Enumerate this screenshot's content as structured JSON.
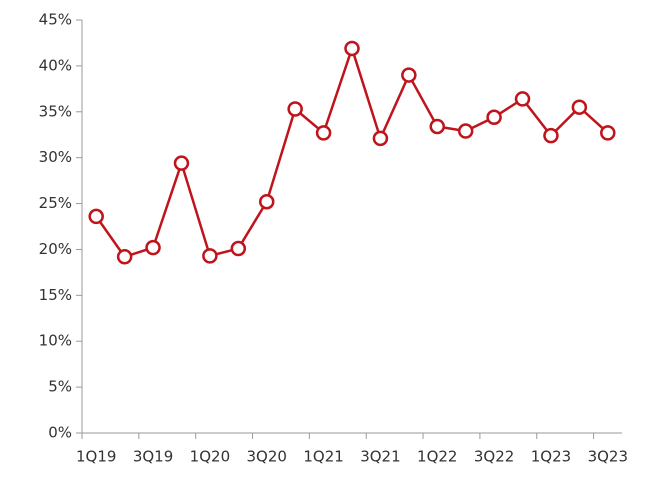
{
  "chart_data": {
    "type": "line",
    "categories": [
      "1Q19",
      null,
      "3Q19",
      null,
      "1Q20",
      null,
      "3Q20",
      null,
      "1Q21",
      null,
      "3Q21",
      null,
      "1Q22",
      null,
      "3Q22",
      null,
      "1Q23",
      null,
      "3Q23"
    ],
    "series": [
      {
        "color": "#c0141c",
        "values": [
          23.6,
          19.2,
          20.2,
          29.4,
          19.3,
          20.1,
          25.2,
          35.3,
          32.7,
          41.9,
          32.1,
          39.0,
          33.4,
          32.9,
          34.4,
          36.4,
          32.4,
          35.5,
          32.7
        ]
      }
    ],
    "ylim": [
      0,
      45
    ],
    "yticks": [
      {
        "value": 0,
        "label": "0%"
      },
      {
        "value": 5,
        "label": "5%"
      },
      {
        "value": 10,
        "label": "10%"
      },
      {
        "value": 15,
        "label": "15%"
      },
      {
        "value": 20,
        "label": "20%"
      },
      {
        "value": 25,
        "label": "25%"
      },
      {
        "value": 30,
        "label": "30%"
      },
      {
        "value": 35,
        "label": "35%"
      },
      {
        "value": 40,
        "label": "40%"
      },
      {
        "value": 45,
        "label": "45%"
      }
    ],
    "grid": false
  }
}
